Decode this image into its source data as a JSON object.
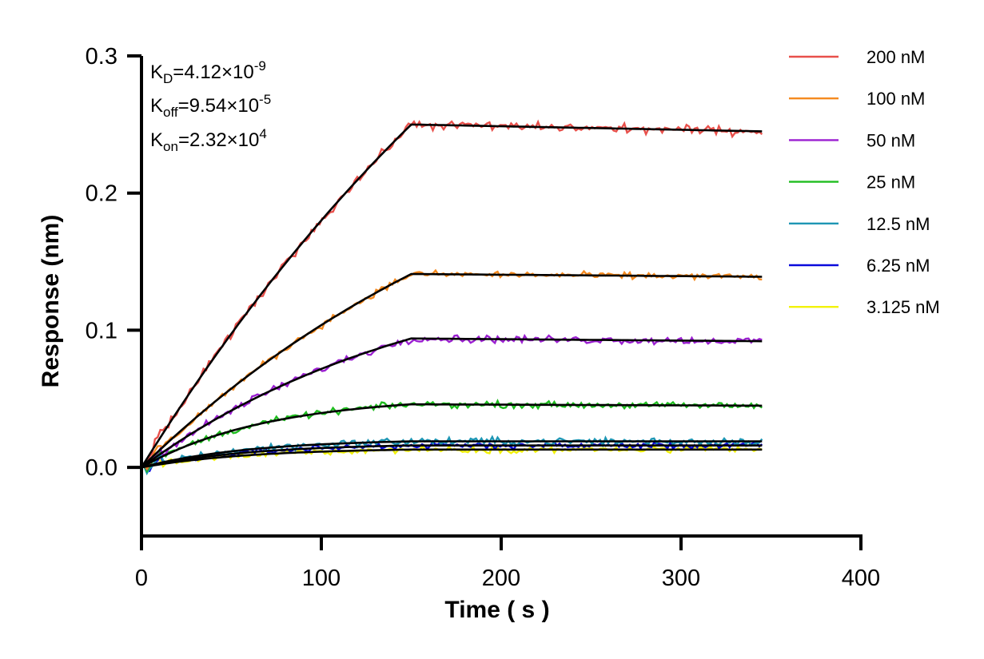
{
  "chart_data": {
    "type": "line",
    "xlabel": "Time ( s )",
    "ylabel": "Response (nm)",
    "xlim": [
      0,
      400
    ],
    "ylim": [
      -0.05,
      0.3
    ],
    "xticks": [
      0,
      100,
      200,
      300,
      400
    ],
    "xtick_labels": [
      "0",
      "100",
      "200",
      "300",
      "400"
    ],
    "yticks": [
      0.0,
      0.1,
      0.2,
      0.3
    ],
    "ytick_labels": [
      "0.0",
      "0.1",
      "0.2",
      "0.3"
    ],
    "grid": false,
    "legend_position": "right",
    "annotations": {
      "kd": {
        "base": "K",
        "sub": "D",
        "mid": "=4.12×10",
        "sup": "-9"
      },
      "koff": {
        "base": "K",
        "sub": "off",
        "mid": "=9.54×10",
        "sup": "-5"
      },
      "kon": {
        "base": "K",
        "sub": "on",
        "mid": "=2.32×10",
        "sup": "4"
      }
    },
    "association_end": 150,
    "end_time": 345,
    "fit_color": "#000000",
    "series": [
      {
        "name": "200 nM",
        "color": "#e8504b",
        "plateau": 0.25,
        "end": 0.245,
        "tau": 300,
        "noise": 0.0035
      },
      {
        "name": "100 nM",
        "color": "#f58a1f",
        "plateau": 0.141,
        "end": 0.139,
        "tau": 230,
        "noise": 0.0025
      },
      {
        "name": "50 nM",
        "color": "#9b1fd1",
        "plateau": 0.094,
        "end": 0.092,
        "tau": 160,
        "noise": 0.003
      },
      {
        "name": "25 nM",
        "color": "#1fbd1f",
        "plateau": 0.046,
        "end": 0.045,
        "tau": 70,
        "noise": 0.0025
      },
      {
        "name": "12.5 nM",
        "color": "#1e96b4",
        "plateau": 0.019,
        "end": 0.019,
        "tau": 60,
        "noise": 0.003
      },
      {
        "name": "6.25 nM",
        "color": "#0a0adc",
        "plateau": 0.016,
        "end": 0.016,
        "tau": 60,
        "noise": 0.0025
      },
      {
        "name": "3.125 nM",
        "color": "#f2f20a",
        "plateau": 0.013,
        "end": 0.013,
        "tau": 60,
        "noise": 0.0025
      }
    ]
  }
}
